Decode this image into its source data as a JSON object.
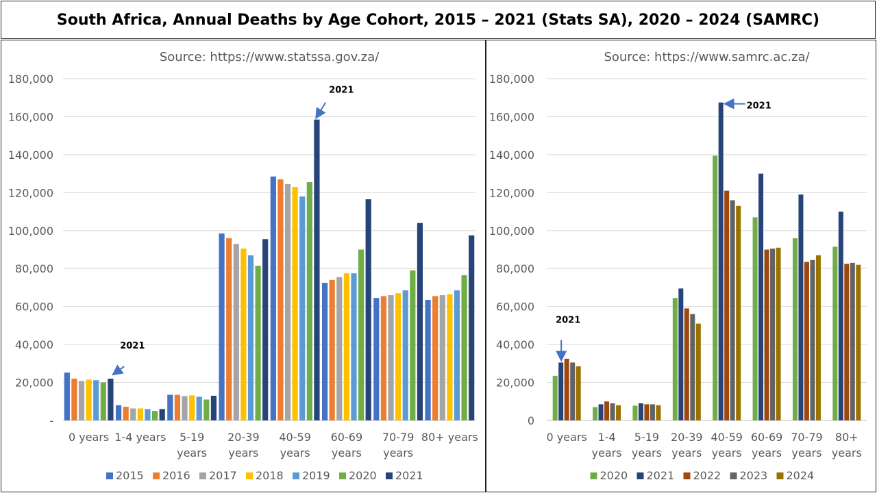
{
  "title": "South Africa, Annual Deaths by Age Cohort, 2015 – 2021 (Stats SA), 2020 – 2024 (SAMRC)",
  "chart_data": [
    {
      "type": "bar",
      "subtitle": "Source: https://www.statssa.gov.za/",
      "categories": [
        [
          "0 years"
        ],
        [
          "1-4 years"
        ],
        [
          "5-19",
          "years"
        ],
        [
          "20-39",
          "years"
        ],
        [
          "40-59",
          "years"
        ],
        [
          "60-69",
          "years"
        ],
        [
          "70-79",
          "years"
        ],
        [
          "80+ years"
        ]
      ],
      "ylim": [
        0,
        180000
      ],
      "yticks": [
        0,
        20000,
        40000,
        60000,
        80000,
        100000,
        120000,
        140000,
        160000,
        180000
      ],
      "ytick_labels": [
        "-",
        "20,000",
        "40,000",
        "60,000",
        "80,000",
        "100,000",
        "120,000",
        "140,000",
        "160,000",
        "180,000"
      ],
      "grid": true,
      "legend_position": "bottom",
      "series": [
        {
          "name": "2015",
          "color": "#4472C4",
          "values": [
            25200,
            8000,
            13500,
            98500,
            128500,
            72500,
            64500,
            63500
          ]
        },
        {
          "name": "2016",
          "color": "#ED7D31",
          "values": [
            22000,
            7200,
            13500,
            96000,
            127000,
            74000,
            65500,
            65500
          ]
        },
        {
          "name": "2017",
          "color": "#A5A5A5",
          "values": [
            20800,
            6300,
            12800,
            93000,
            124500,
            75500,
            66000,
            66000
          ]
        },
        {
          "name": "2018",
          "color": "#FFC000",
          "values": [
            21500,
            6300,
            13200,
            90500,
            123000,
            77500,
            67000,
            66500
          ]
        },
        {
          "name": "2019",
          "color": "#5B9BD5",
          "values": [
            21200,
            6000,
            12500,
            87000,
            118000,
            77500,
            68500,
            68500
          ]
        },
        {
          "name": "2020",
          "color": "#70AD47",
          "values": [
            20000,
            5000,
            11000,
            81500,
            125500,
            90000,
            79000,
            76500
          ]
        },
        {
          "name": "2021",
          "color": "#264478",
          "values": [
            22000,
            6000,
            13000,
            95500,
            158500,
            116500,
            104000,
            97500
          ]
        }
      ],
      "annotations": [
        {
          "text": "2021",
          "category": 0,
          "series": 6
        },
        {
          "text": "2021",
          "category": 4,
          "series": 6
        }
      ]
    },
    {
      "type": "bar",
      "subtitle": "Source: https://www.samrc.ac.za/",
      "categories": [
        [
          "0 years"
        ],
        [
          "1-4",
          "years"
        ],
        [
          "5-19",
          "years"
        ],
        [
          "20-39",
          "years"
        ],
        [
          "40-59",
          "years"
        ],
        [
          "60-69",
          "years"
        ],
        [
          "70-79",
          "years"
        ],
        [
          "80+",
          "years"
        ]
      ],
      "ylim": [
        0,
        180000
      ],
      "yticks": [
        0,
        20000,
        40000,
        60000,
        80000,
        100000,
        120000,
        140000,
        160000,
        180000
      ],
      "ytick_labels": [
        "0",
        "20,000",
        "40,000",
        "60,000",
        "80,000",
        "100,000",
        "120,000",
        "140,000",
        "160,000",
        "180,000"
      ],
      "grid": true,
      "legend_position": "bottom",
      "series": [
        {
          "name": "2020",
          "color": "#70AD47",
          "values": [
            23500,
            7000,
            7800,
            64500,
            139500,
            107000,
            96000,
            91500
          ]
        },
        {
          "name": "2021",
          "color": "#264478",
          "values": [
            30500,
            8500,
            9000,
            69500,
            167500,
            130000,
            119000,
            110000
          ]
        },
        {
          "name": "2022",
          "color": "#9E480E",
          "values": [
            32500,
            10000,
            8500,
            59000,
            121000,
            90000,
            83500,
            82500
          ]
        },
        {
          "name": "2023",
          "color": "#636363",
          "values": [
            30500,
            9000,
            8500,
            56000,
            116000,
            90500,
            84500,
            83000
          ]
        },
        {
          "name": "2024",
          "color": "#997300",
          "values": [
            28500,
            8000,
            8000,
            51000,
            113000,
            91000,
            87000,
            82000
          ]
        }
      ],
      "annotations": [
        {
          "text": "2021",
          "category": 0,
          "series": 1
        },
        {
          "text": "2021",
          "category": 4,
          "series": 1
        }
      ]
    }
  ]
}
